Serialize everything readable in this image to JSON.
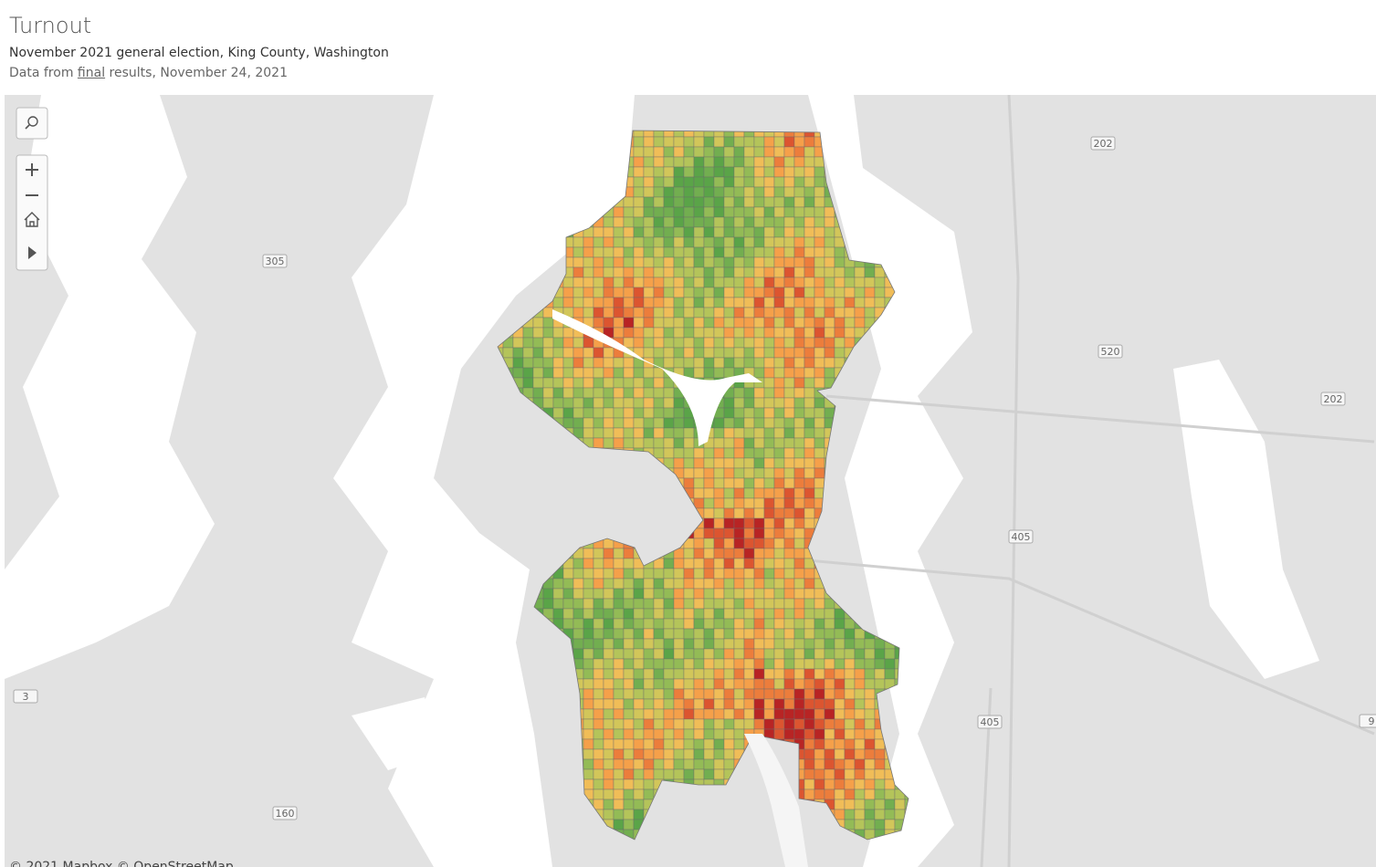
{
  "header": {
    "title": "Turnout",
    "subtitle": "November 2021 general election, King County, Washington",
    "source": {
      "before": "Data from",
      "link": "final",
      "after": "results, November 24, 2021"
    }
  },
  "map": {
    "road_shields": [
      "202",
      "305",
      "520",
      "202",
      "405",
      "405",
      "3",
      "160",
      "9"
    ],
    "attribution": "© 2021 Mapbox © OpenStreetMap"
  }
}
